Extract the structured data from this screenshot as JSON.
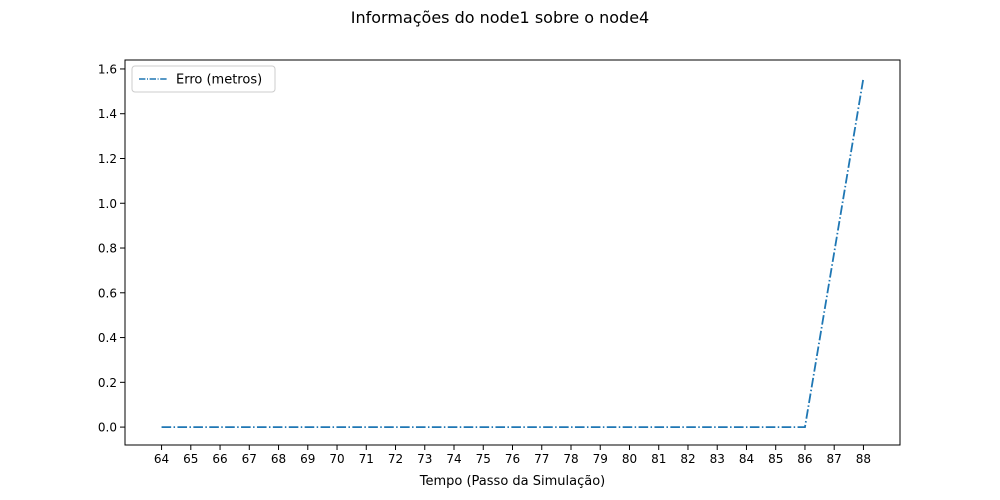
{
  "chart_data": {
    "type": "line",
    "title": "Informações do node1 sobre o node4",
    "xlabel": "Tempo (Passo da Simulação)",
    "ylabel": "",
    "x": [
      64,
      65,
      66,
      67,
      68,
      69,
      70,
      71,
      72,
      73,
      74,
      75,
      76,
      77,
      78,
      79,
      80,
      81,
      82,
      83,
      84,
      85,
      86,
      87,
      88
    ],
    "xticks": [
      "64",
      "65",
      "66",
      "67",
      "68",
      "69",
      "70",
      "71",
      "72",
      "73",
      "74",
      "75",
      "76",
      "77",
      "78",
      "79",
      "80",
      "81",
      "82",
      "83",
      "84",
      "85",
      "86",
      "87",
      "88"
    ],
    "xlim": [
      62.75,
      89.25
    ],
    "ylim": [
      -0.08,
      1.64
    ],
    "yticks": [
      "0.0",
      "0.2",
      "0.4",
      "0.6",
      "0.8",
      "1.0",
      "1.2",
      "1.4",
      "1.6"
    ],
    "ytick_values": [
      0.0,
      0.2,
      0.4,
      0.6,
      0.8,
      1.0,
      1.2,
      1.4,
      1.6
    ],
    "series": [
      {
        "name": "Erro (metros)",
        "color": "#1f77b4",
        "linestyle": "dashdot",
        "values": [
          0,
          0,
          0,
          0,
          0,
          0,
          0,
          0,
          0,
          0,
          0,
          0,
          0,
          0,
          0,
          0,
          0,
          0,
          0,
          0,
          0,
          0,
          0,
          0.78,
          1.56
        ]
      }
    ],
    "legend": "top-left",
    "grid": false
  }
}
